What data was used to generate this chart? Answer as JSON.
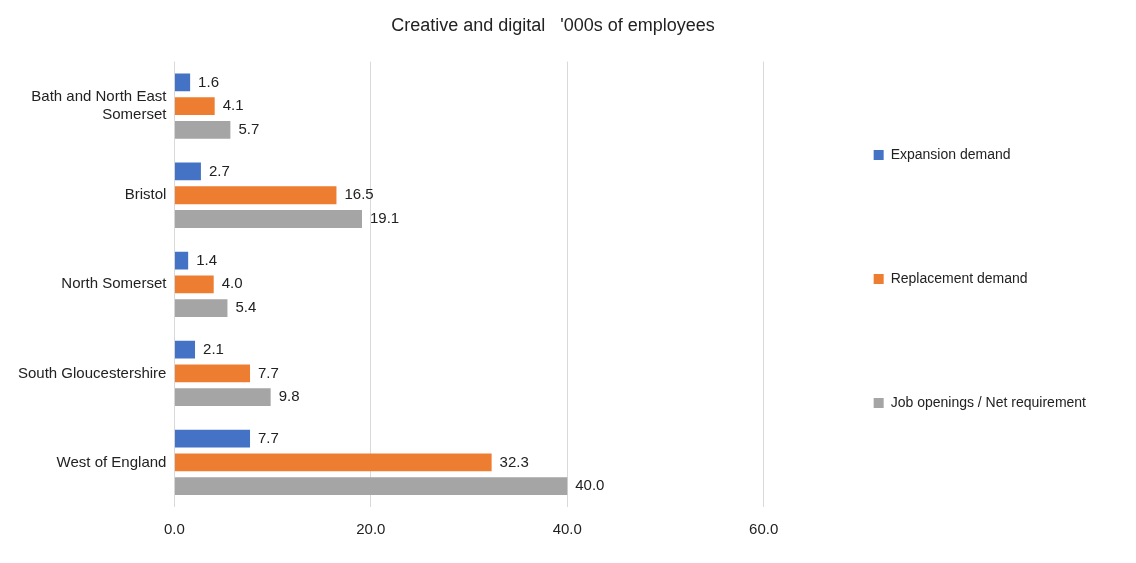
{
  "chart_data": {
    "type": "bar",
    "orientation": "horizontal",
    "title": "Creative and digital   '000s of employees",
    "categories": [
      "Bath and North East Somerset",
      "Bristol",
      "North Somerset",
      "South Gloucestershire",
      "West of England"
    ],
    "series": [
      {
        "name": "Expansion demand",
        "color": "#4472c4",
        "values": [
          1.6,
          2.7,
          1.4,
          2.1,
          7.7
        ],
        "value_labels": [
          "1.6",
          "2.7",
          "1.4",
          "2.1",
          "7.7"
        ]
      },
      {
        "name": "Replacement demand",
        "color": "#ed7d31",
        "values": [
          4.1,
          16.5,
          4.0,
          7.7,
          32.3
        ],
        "value_labels": [
          "4.1",
          "16.5",
          "4.0",
          "7.7",
          "32.3"
        ]
      },
      {
        "name": "Job openings / Net requirement",
        "color": "#a5a5a5",
        "values": [
          5.7,
          19.1,
          5.4,
          9.8,
          40.0
        ],
        "value_labels": [
          "5.7",
          "19.1",
          "5.4",
          "9.8",
          "40.0"
        ]
      }
    ],
    "xlim": [
      0,
      60
    ],
    "xticks": [
      {
        "value": 0,
        "label": "0.0"
      },
      {
        "value": 20,
        "label": "20.0"
      },
      {
        "value": 40,
        "label": "40.0"
      },
      {
        "value": 60,
        "label": "60.0"
      }
    ],
    "grid": "x",
    "legend": "right"
  }
}
